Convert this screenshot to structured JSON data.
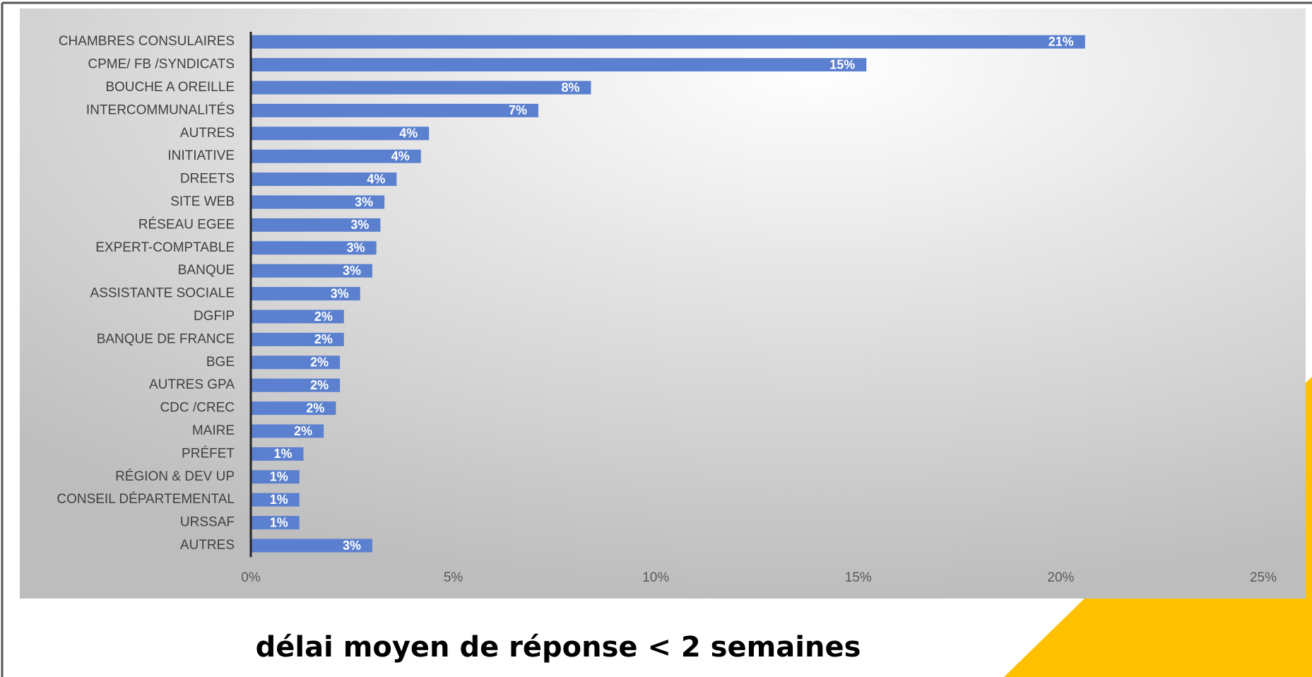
{
  "chart_data": {
    "type": "barh",
    "categories": [
      "CHAMBRES CONSULAIRES",
      "CPME/ FB /SYNDICATS",
      "BOUCHE A OREILLE",
      "INTERCOMMUNALITÉS",
      "AUTRES",
      "INITIATIVE",
      "DREETS",
      "SITE WEB",
      "RÉSEAU EGEE",
      "EXPERT-COMPTABLE",
      "BANQUE",
      "ASSISTANTE SOCIALE",
      "DGFIP",
      "BANQUE DE FRANCE",
      "BGE",
      "AUTRES GPA",
      "CDC /CREC",
      "MAIRE",
      "PRÉFET",
      "RÉGION & DEV UP",
      "CONSEIL DÉPARTEMENTAL",
      "URSSAF",
      "AUTRES"
    ],
    "values": [
      20.6,
      15.2,
      8.4,
      7.1,
      4.4,
      4.2,
      3.6,
      3.3,
      3.2,
      3.1,
      3.0,
      2.7,
      2.3,
      2.3,
      2.2,
      2.2,
      2.1,
      1.8,
      1.3,
      1.2,
      1.2,
      1.2,
      3.0
    ],
    "value_labels": [
      "21%",
      "15%",
      "8%",
      "7%",
      "4%",
      "4%",
      "4%",
      "3%",
      "3%",
      "3%",
      "3%",
      "3%",
      "2%",
      "2%",
      "2%",
      "2%",
      "2%",
      "2%",
      "1%",
      "1%",
      "1%",
      "1%",
      "3%"
    ],
    "color": "#5b80cf",
    "xlim": [
      0,
      25
    ],
    "xticks": [
      {
        "value": 0,
        "label": "0%"
      },
      {
        "value": 5,
        "label": "5%"
      },
      {
        "value": 10,
        "label": "10%"
      },
      {
        "value": 15,
        "label": "15%"
      },
      {
        "value": 20,
        "label": "20%"
      },
      {
        "value": 25,
        "label": "25%"
      }
    ]
  },
  "caption": "délai moyen de réponse < 2 semaines"
}
